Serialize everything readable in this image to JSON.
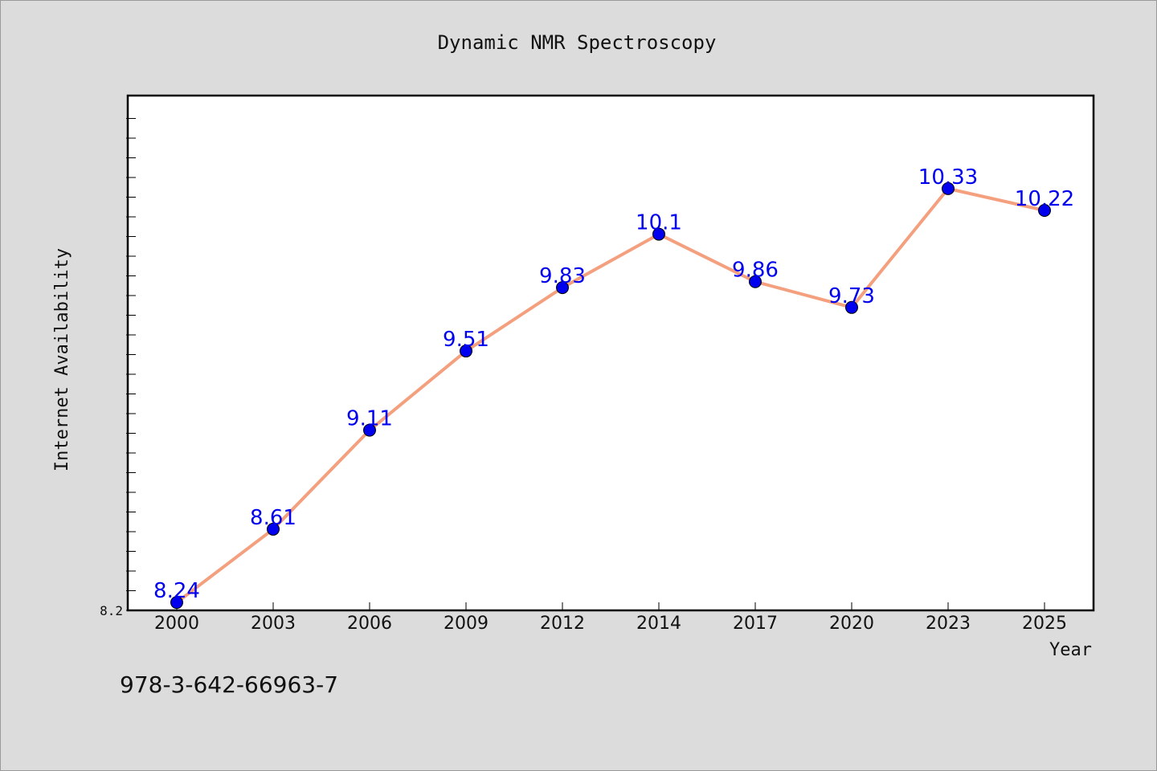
{
  "chart_data": {
    "type": "line",
    "title": "Dynamic NMR Spectroscopy",
    "xlabel": "Year",
    "ylabel": "Internet Availability",
    "x": [
      "2000",
      "2003",
      "2006",
      "2009",
      "2012",
      "2014",
      "2017",
      "2020",
      "2023",
      "2025"
    ],
    "series": [
      {
        "values": [
          8.24,
          8.61,
          9.11,
          9.51,
          9.83,
          10.1,
          9.86,
          9.73,
          10.33,
          10.22
        ],
        "data_labels": [
          "8.24",
          "8.61",
          "9.11",
          "9.51",
          "9.83",
          "10.1",
          "9.86",
          "9.73",
          "10.33",
          "10.22"
        ],
        "line_color": "#f4a07e",
        "marker_color": "#0000ee",
        "label_color": "#0000ee"
      }
    ],
    "y_tick_labels": [
      "8.2"
    ],
    "ylim": [
      8.2,
      10.8
    ],
    "grid": false,
    "legend": "none"
  },
  "footer": {
    "isbn": "978-3-642-66963-7"
  }
}
